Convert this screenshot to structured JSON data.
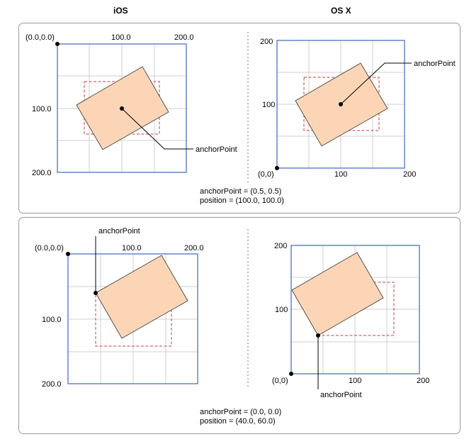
{
  "headers": {
    "ios": "iOS",
    "osx": "OS X"
  },
  "colors": {
    "axis": "#4a72c4",
    "grid": "#cfcfcf",
    "fill": "#fbd5b5",
    "dashed": "#c83c3c",
    "separator": "#bbbbbb"
  },
  "panels": [
    {
      "ios": {
        "origin_label": "(0.0,0.0)",
        "x_tick": "100.0",
        "x_end": "200.0",
        "y_tick": "100.0",
        "y_end": "200.0",
        "callout": "anchorPoint"
      },
      "osx": {
        "y_top": "200",
        "y_mid": "100",
        "origin_label": "(0,0)",
        "x_mid": "100",
        "x_end": "200",
        "callout": "anchorPoint"
      },
      "caption": {
        "anchor": "anchorPoint = (0.5, 0.5)",
        "position": "position = (100.0, 100.0)"
      }
    },
    {
      "ios": {
        "origin_label": "(0.0,0.0)",
        "x_tick": "100.0",
        "x_end": "200.0",
        "y_tick": "100.0",
        "y_end": "200.0",
        "callout": "anchorPoint"
      },
      "osx": {
        "y_top": "200",
        "y_mid": "100",
        "origin_label": "(0,0)",
        "x_mid": "100",
        "x_end": "200",
        "callout": "anchorPoint"
      },
      "caption": {
        "anchor": "anchorPoint = (0.0, 0.0)",
        "position": "position = (40.0, 60.0)"
      }
    }
  ]
}
